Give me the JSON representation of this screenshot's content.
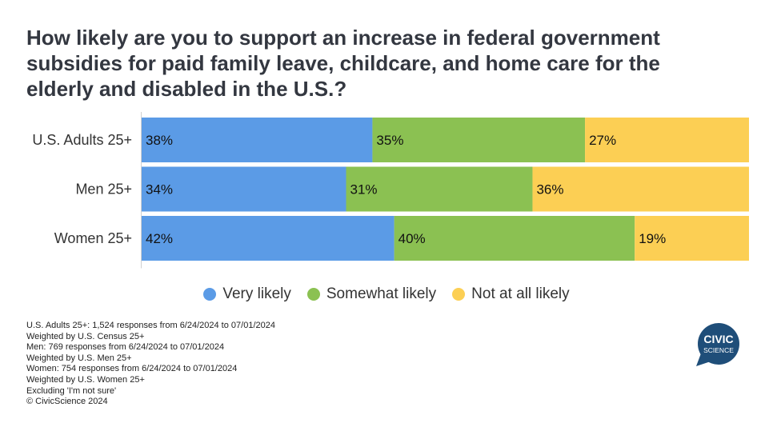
{
  "title": "How likely are you to support an increase in federal government subsidies for paid family leave, childcare, and home care for the elderly and disabled in the U.S.?",
  "chart_data": {
    "type": "bar",
    "orientation": "horizontal",
    "stacked": true,
    "normalized": true,
    "categories": [
      "U.S. Adults 25+",
      "Men 25+",
      "Women 25+"
    ],
    "series": [
      {
        "name": "Very likely",
        "color": "#5b9be6",
        "values": [
          38,
          34,
          42
        ],
        "labels": [
          "38%",
          "34%",
          "42%"
        ]
      },
      {
        "name": "Somewhat likely",
        "color": "#8bc152",
        "values": [
          35,
          31,
          40
        ],
        "labels": [
          "35%",
          "31%",
          "40%"
        ]
      },
      {
        "name": "Not at all likely",
        "color": "#fccf54",
        "values": [
          27,
          36,
          19
        ],
        "labels": [
          "27%",
          "36%",
          "19%"
        ]
      }
    ],
    "legend_position": "bottom",
    "grid": false
  },
  "notes": [
    "U.S. Adults 25+: 1,524 responses from 6/24/2024 to 07/01/2024",
    "Weighted by U.S. Census 25+",
    "Men: 769 responses from 6/24/2024 to 07/01/2024",
    "Weighted by U.S. Men 25+",
    "Women: 754 responses from 6/24/2024 to 07/01/2024",
    "Weighted by U.S. Women 25+",
    "Excluding 'I'm not sure'",
    "© CivicScience 2024"
  ],
  "logo": {
    "line1": "CIVIC",
    "line2": "SCIENCE",
    "color": "#1f4e79"
  }
}
